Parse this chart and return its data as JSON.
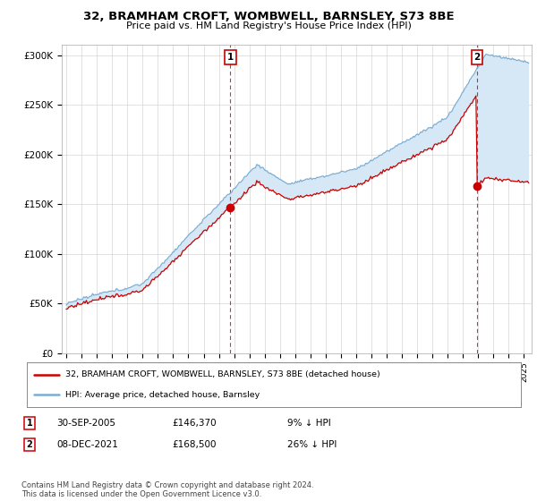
{
  "title": "32, BRAMHAM CROFT, WOMBWELL, BARNSLEY, S73 8BE",
  "subtitle": "Price paid vs. HM Land Registry's House Price Index (HPI)",
  "ylabel_ticks": [
    "£0",
    "£50K",
    "£100K",
    "£150K",
    "£200K",
    "£250K",
    "£300K"
  ],
  "ytick_values": [
    0,
    50000,
    100000,
    150000,
    200000,
    250000,
    300000
  ],
  "ylim": [
    0,
    310000
  ],
  "hpi_color": "#7aadd4",
  "price_color": "#cc0000",
  "fill_color": "#d6e8f5",
  "sale1_year": 2005.75,
  "sale2_year": 2021.92,
  "sale1_price": 146370,
  "sale2_price": 168500,
  "legend_line1": "32, BRAMHAM CROFT, WOMBWELL, BARNSLEY, S73 8BE (detached house)",
  "legend_line2": "HPI: Average price, detached house, Barnsley",
  "footer": "Contains HM Land Registry data © Crown copyright and database right 2024.\nThis data is licensed under the Open Government Licence v3.0.",
  "background_color": "#ffffff",
  "xlim_start": 1994.7,
  "xlim_end": 2025.5
}
